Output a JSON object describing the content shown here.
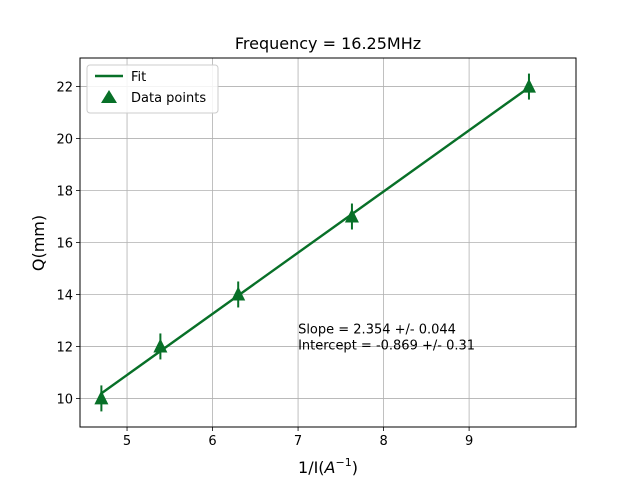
{
  "chart_data": {
    "type": "scatter",
    "title": "Frequency = 16.25MHz",
    "xlabel_base": "1/I(",
    "xlabel_sym": "A",
    "xlabel_exp": "−1",
    "xlabel_close": ")",
    "ylabel": "Q(mm)",
    "xlim": [
      4.45,
      10.25
    ],
    "ylim": [
      8.9,
      23.1
    ],
    "xticks": [
      5,
      6,
      7,
      8,
      9
    ],
    "yticks": [
      10,
      12,
      14,
      16,
      18,
      20,
      22
    ],
    "grid": true,
    "legend": {
      "position": "top-left",
      "fit_label": "Fit",
      "points_label": "Data points"
    },
    "series": [
      {
        "kind": "points",
        "x": [
          4.7,
          5.39,
          6.3,
          7.63,
          9.7
        ],
        "y": [
          10,
          12,
          14,
          17,
          22
        ],
        "yerr": [
          0.5,
          0.5,
          0.5,
          0.5,
          0.5
        ],
        "marker": "triangle",
        "color": "#087028"
      },
      {
        "kind": "fit",
        "slope": 2.354,
        "intercept": -0.869,
        "x_range": [
          4.7,
          9.7
        ],
        "color": "#087028"
      }
    ],
    "annotation": {
      "line1": "Slope = 2.354 +/- 0.044",
      "line2": "Intercept = -0.869 +/- 0.31",
      "x": 7.0,
      "y": 12.5
    }
  }
}
